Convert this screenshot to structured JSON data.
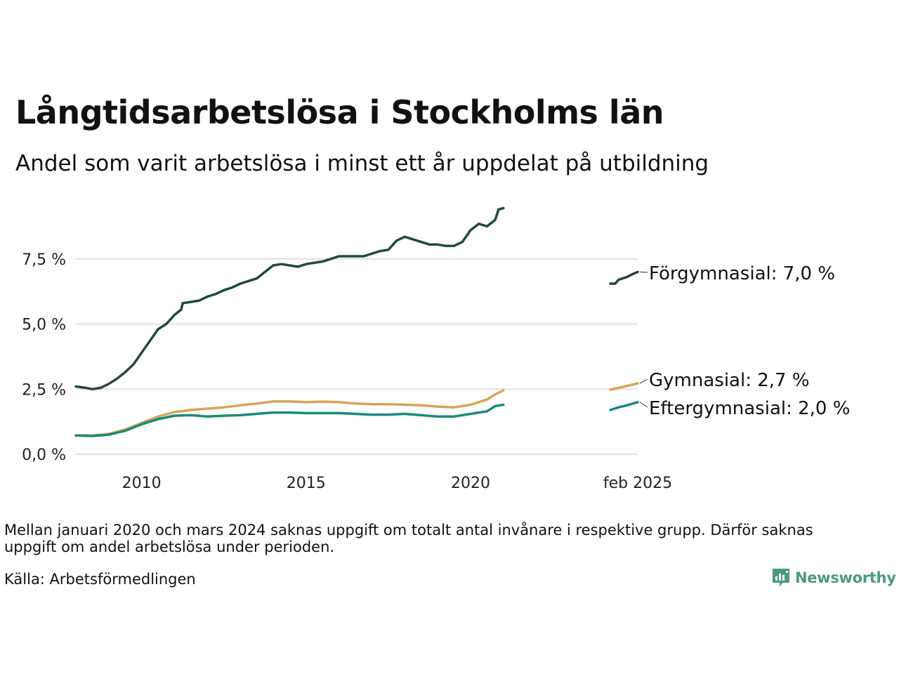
{
  "title": "Långtidsarbetslösa i Stockholms län",
  "subtitle": "Andel som varit arbetslösa i minst ett år uppdelat på utbildning",
  "note": "Mellan januari 2020 och mars 2024 saknas uppgift om totalt antal invånare i respektive grupp. Därför saknas uppgift om andel arbetslösa under perioden.",
  "source": "Källa: Arbetsförmedlingen",
  "logo": {
    "name": "Newsworthy",
    "color": "#4a9a7a"
  },
  "chart_data": {
    "type": "line",
    "title": "Långtidsarbetslösa i Stockholms län",
    "subtitle": "Andel som varit arbetslösa i minst ett år uppdelat på utbildning",
    "xlabel": "",
    "ylabel": "",
    "ylim": [
      0,
      9.5
    ],
    "yticks": [
      0,
      2.5,
      5.0,
      7.5
    ],
    "ytick_labels": [
      "0,0 %",
      "2,5 %",
      "5,0 %",
      "7,5 %"
    ],
    "xticks": [
      2010,
      2015,
      2020,
      2025.083
    ],
    "xtick_labels": [
      "2010",
      "2015",
      "2020",
      "feb 2025"
    ],
    "grid": true,
    "legend": "direct labels at right end of lines",
    "series": [
      {
        "name": "Förgymnasial",
        "end_label": "Förgymnasial: 7,0 %",
        "color": "#1f4a3c",
        "segments": [
          [
            [
              2008.0,
              2.6
            ],
            [
              2008.3,
              2.55
            ],
            [
              2008.5,
              2.5
            ],
            [
              2008.75,
              2.55
            ],
            [
              2009.0,
              2.7
            ],
            [
              2009.25,
              2.9
            ],
            [
              2009.5,
              3.15
            ],
            [
              2009.75,
              3.45
            ],
            [
              2010.0,
              3.9
            ],
            [
              2010.25,
              4.35
            ],
            [
              2010.5,
              4.8
            ],
            [
              2010.75,
              5.0
            ],
            [
              2011.0,
              5.35
            ],
            [
              2011.2,
              5.55
            ],
            [
              2011.25,
              5.8
            ],
            [
              2011.5,
              5.85
            ],
            [
              2011.75,
              5.9
            ],
            [
              2012.0,
              6.05
            ],
            [
              2012.25,
              6.15
            ],
            [
              2012.5,
              6.3
            ],
            [
              2012.75,
              6.4
            ],
            [
              2013.0,
              6.55
            ],
            [
              2013.25,
              6.65
            ],
            [
              2013.5,
              6.75
            ],
            [
              2013.75,
              7.0
            ],
            [
              2014.0,
              7.25
            ],
            [
              2014.25,
              7.3
            ],
            [
              2014.5,
              7.25
            ],
            [
              2014.75,
              7.2
            ],
            [
              2015.0,
              7.3
            ],
            [
              2015.25,
              7.35
            ],
            [
              2015.5,
              7.4
            ],
            [
              2015.75,
              7.5
            ],
            [
              2016.0,
              7.6
            ],
            [
              2016.25,
              7.6
            ],
            [
              2016.5,
              7.6
            ],
            [
              2016.75,
              7.6
            ],
            [
              2017.0,
              7.7
            ],
            [
              2017.25,
              7.8
            ],
            [
              2017.5,
              7.85
            ],
            [
              2017.75,
              8.2
            ],
            [
              2018.0,
              8.35
            ],
            [
              2018.25,
              8.25
            ],
            [
              2018.5,
              8.15
            ],
            [
              2018.75,
              8.05
            ],
            [
              2019.0,
              8.05
            ],
            [
              2019.25,
              8.0
            ],
            [
              2019.5,
              8.0
            ],
            [
              2019.75,
              8.15
            ],
            [
              2020.0,
              8.6
            ],
            [
              2020.25,
              8.85
            ],
            [
              2020.5,
              8.75
            ],
            [
              2020.75,
              9.0
            ],
            [
              2020.85,
              9.4
            ],
            [
              2021.0,
              9.45
            ]
          ],
          [
            [
              2024.25,
              6.55
            ],
            [
              2024.4,
              6.55
            ],
            [
              2024.5,
              6.7
            ],
            [
              2024.75,
              6.8
            ],
            [
              2024.9,
              6.9
            ],
            [
              2025.083,
              7.0
            ]
          ]
        ]
      },
      {
        "name": "Gymnasial",
        "end_label": "Gymnasial: 2,7 %",
        "color": "#d4a55a",
        "segments": [
          [
            [
              2008.0,
              0.72
            ],
            [
              2008.5,
              0.72
            ],
            [
              2009.0,
              0.78
            ],
            [
              2009.5,
              0.95
            ],
            [
              2010.0,
              1.2
            ],
            [
              2010.5,
              1.45
            ],
            [
              2011.0,
              1.62
            ],
            [
              2011.5,
              1.7
            ],
            [
              2012.0,
              1.75
            ],
            [
              2012.5,
              1.8
            ],
            [
              2013.0,
              1.88
            ],
            [
              2013.5,
              1.95
            ],
            [
              2014.0,
              2.03
            ],
            [
              2014.5,
              2.03
            ],
            [
              2015.0,
              2.0
            ],
            [
              2015.5,
              2.02
            ],
            [
              2016.0,
              2.0
            ],
            [
              2016.5,
              1.95
            ],
            [
              2017.0,
              1.92
            ],
            [
              2017.5,
              1.92
            ],
            [
              2018.0,
              1.9
            ],
            [
              2018.5,
              1.88
            ],
            [
              2019.0,
              1.83
            ],
            [
              2019.5,
              1.8
            ],
            [
              2020.0,
              1.9
            ],
            [
              2020.5,
              2.1
            ],
            [
              2020.75,
              2.3
            ],
            [
              2021.0,
              2.45
            ]
          ],
          [
            [
              2024.25,
              2.48
            ],
            [
              2024.5,
              2.55
            ],
            [
              2024.75,
              2.62
            ],
            [
              2025.083,
              2.72
            ]
          ]
        ]
      },
      {
        "name": "Eftergymnasial",
        "end_label": "Eftergymnasial: 2,0 %",
        "color": "#1a8a78",
        "segments": [
          [
            [
              2008.0,
              0.72
            ],
            [
              2008.5,
              0.7
            ],
            [
              2009.0,
              0.75
            ],
            [
              2009.5,
              0.9
            ],
            [
              2010.0,
              1.15
            ],
            [
              2010.5,
              1.35
            ],
            [
              2011.0,
              1.48
            ],
            [
              2011.5,
              1.5
            ],
            [
              2012.0,
              1.45
            ],
            [
              2012.5,
              1.48
            ],
            [
              2013.0,
              1.5
            ],
            [
              2013.5,
              1.55
            ],
            [
              2014.0,
              1.6
            ],
            [
              2014.5,
              1.6
            ],
            [
              2015.0,
              1.58
            ],
            [
              2015.5,
              1.58
            ],
            [
              2016.0,
              1.58
            ],
            [
              2016.5,
              1.55
            ],
            [
              2017.0,
              1.52
            ],
            [
              2017.5,
              1.52
            ],
            [
              2018.0,
              1.55
            ],
            [
              2018.5,
              1.5
            ],
            [
              2019.0,
              1.45
            ],
            [
              2019.5,
              1.45
            ],
            [
              2020.0,
              1.55
            ],
            [
              2020.5,
              1.65
            ],
            [
              2020.75,
              1.85
            ],
            [
              2021.0,
              1.9
            ]
          ],
          [
            [
              2024.25,
              1.7
            ],
            [
              2024.5,
              1.8
            ],
            [
              2024.75,
              1.88
            ],
            [
              2025.083,
              2.0
            ]
          ]
        ]
      }
    ]
  }
}
